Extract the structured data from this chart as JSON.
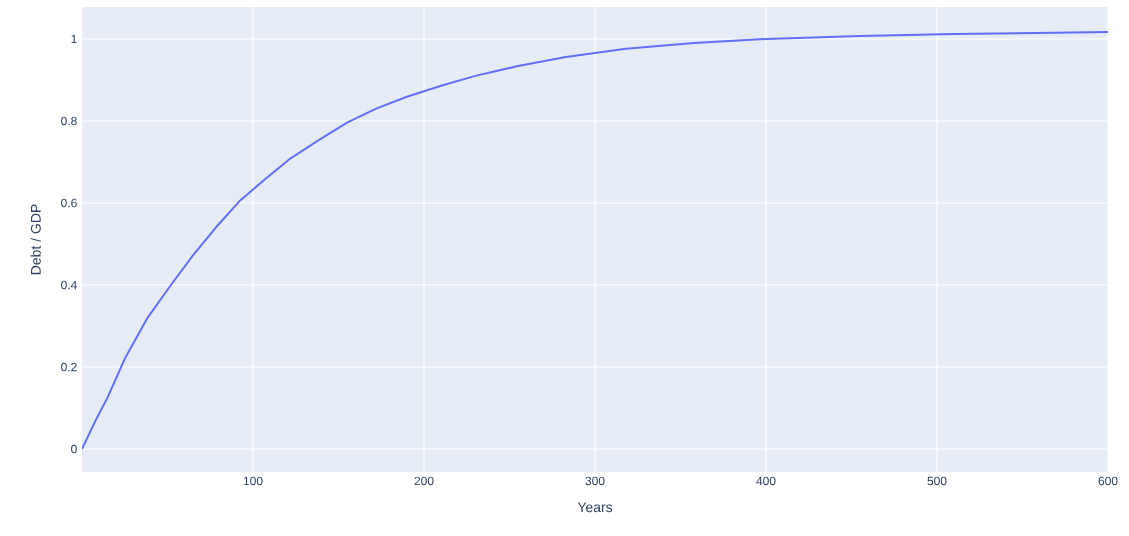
{
  "chart_data": {
    "type": "line",
    "xlabel": "Years",
    "ylabel": "Debt / GDP",
    "series": [
      {
        "color": "#636efa",
        "x": [
          0,
          8,
          15,
          25,
          38,
          52,
          65,
          78,
          92,
          107,
          122,
          138,
          155,
          172,
          190,
          210,
          230,
          255,
          283,
          318,
          358,
          400,
          455,
          510,
          600
        ],
        "values": [
          0,
          0.07,
          0.126,
          0.22,
          0.318,
          0.4,
          0.473,
          0.539,
          0.604,
          0.658,
          0.709,
          0.752,
          0.796,
          0.83,
          0.859,
          0.886,
          0.91,
          0.934,
          0.956,
          0.976,
          0.99,
          1.0,
          1.007,
          1.012,
          1.017
        ]
      }
    ],
    "xlim": [
      0,
      600
    ],
    "ylim": [
      -0.056,
      1.078
    ],
    "xticks": [
      100,
      200,
      300,
      400,
      500,
      600
    ],
    "yticks": [
      0,
      0.2,
      0.4,
      0.6,
      0.8,
      1
    ],
    "grid": true,
    "marker": "none",
    "line_style": "solid"
  }
}
